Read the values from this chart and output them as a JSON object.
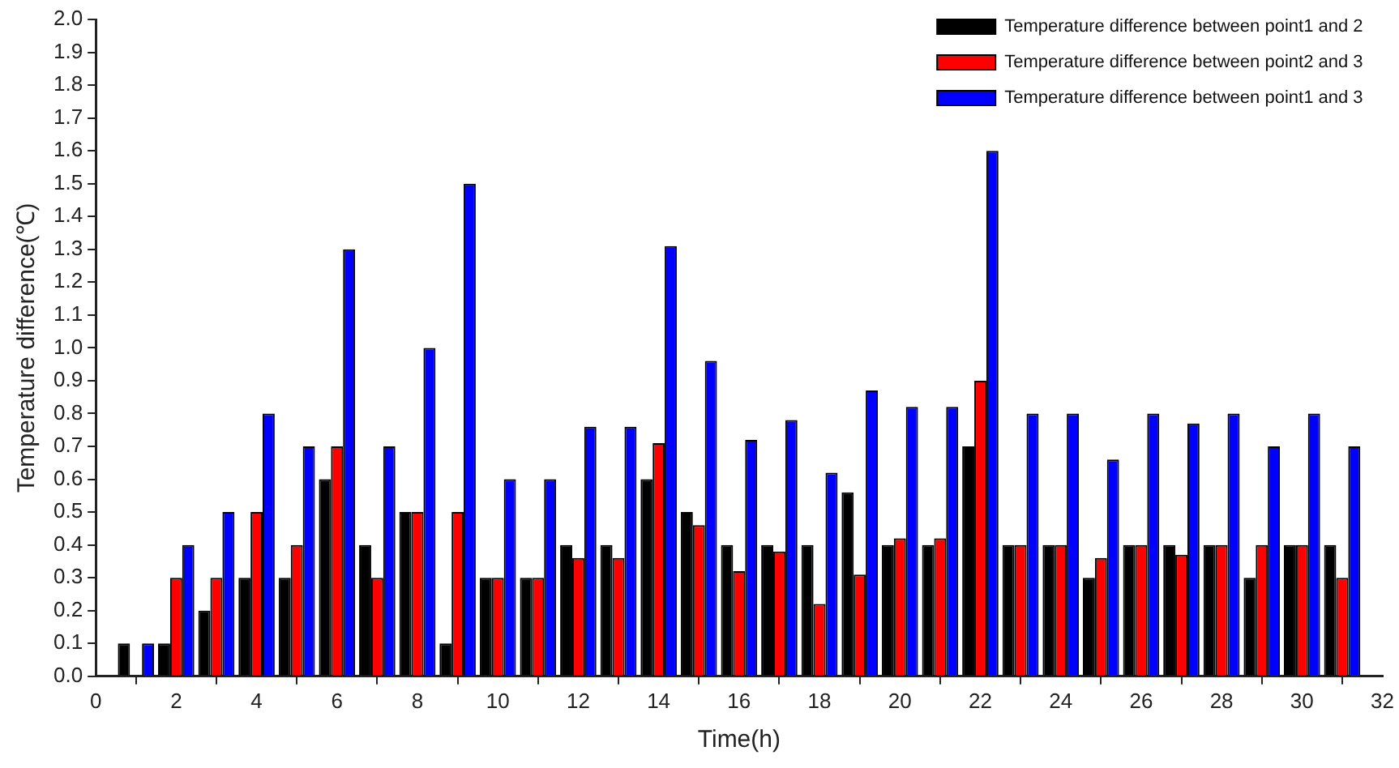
{
  "chart_data": {
    "type": "bar",
    "xlabel": "Time(h)",
    "ylabel": "Temperature difference(℃)",
    "x": [
      1,
      2,
      3,
      4,
      5,
      6,
      7,
      8,
      9,
      10,
      11,
      12,
      13,
      14,
      15,
      16,
      17,
      18,
      19,
      20,
      21,
      22,
      23,
      24,
      25,
      26,
      27,
      28,
      29,
      30,
      31
    ],
    "series": [
      {
        "name": "Temperature difference between point1 and 2",
        "color": "#000000",
        "values": [
          0.1,
          0.1,
          0.2,
          0.3,
          0.3,
          0.6,
          0.4,
          0.5,
          0.1,
          0.3,
          0.3,
          0.4,
          0.4,
          0.6,
          0.5,
          0.4,
          0.4,
          0.4,
          0.56,
          0.4,
          0.4,
          0.7,
          0.4,
          0.4,
          0.3,
          0.4,
          0.4,
          0.4,
          0.3,
          0.4,
          0.4
        ]
      },
      {
        "name": "Temperature difference between point2 and 3",
        "color": "#ff0000",
        "values": [
          null,
          0.3,
          0.3,
          0.5,
          0.4,
          0.7,
          0.3,
          0.5,
          0.5,
          0.3,
          0.3,
          0.36,
          0.36,
          0.71,
          0.46,
          0.32,
          0.38,
          0.22,
          0.31,
          0.42,
          0.42,
          0.9,
          0.4,
          0.4,
          0.36,
          0.4,
          0.37,
          0.4,
          0.4,
          0.4,
          0.3
        ]
      },
      {
        "name": "Temperature difference between point1 and 3",
        "color": "#0000ff",
        "values": [
          0.1,
          0.4,
          0.5,
          0.8,
          0.7,
          1.3,
          0.7,
          1.0,
          1.5,
          0.6,
          0.6,
          0.76,
          0.76,
          1.31,
          0.96,
          0.72,
          0.78,
          0.62,
          0.87,
          0.82,
          0.82,
          1.6,
          0.8,
          0.8,
          0.66,
          0.8,
          0.77,
          0.8,
          0.7,
          0.8,
          0.7
        ]
      }
    ],
    "xlim": [
      0,
      32
    ],
    "xticks": [
      0,
      2,
      4,
      6,
      8,
      10,
      12,
      14,
      16,
      18,
      20,
      22,
      24,
      26,
      28,
      30,
      32
    ],
    "ylim": [
      0,
      2.0
    ],
    "yticks": [
      {
        "value": 0,
        "label": "0.0"
      },
      {
        "value": 0.1,
        "label": "0.1"
      },
      {
        "value": 0.2,
        "label": "0.2"
      },
      {
        "value": 0.3,
        "label": "0.3"
      },
      {
        "value": 0.4,
        "label": "0.4"
      },
      {
        "value": 0.5,
        "label": "0.5"
      },
      {
        "value": 0.6,
        "label": "0.6"
      },
      {
        "value": 0.7,
        "label": "0.7"
      },
      {
        "value": 0.8,
        "label": "0.8"
      },
      {
        "value": 0.9,
        "label": "0.9"
      },
      {
        "value": 1.0,
        "label": "1.0"
      },
      {
        "value": 1.1,
        "label": "1.1"
      },
      {
        "value": 1.2,
        "label": "1.2"
      },
      {
        "value": 1.3,
        "label": "1.3"
      },
      {
        "value": 1.4,
        "label": "1.4"
      },
      {
        "value": 1.5,
        "label": "1.5"
      },
      {
        "value": 1.6,
        "label": "1.6"
      },
      {
        "value": 1.7,
        "label": "1.7"
      },
      {
        "value": 1.8,
        "label": "1.8"
      },
      {
        "value": 1.9,
        "label": "1.9"
      },
      {
        "value": 2.0,
        "label": "2.0"
      }
    ],
    "grid": false,
    "legend": "top right"
  }
}
